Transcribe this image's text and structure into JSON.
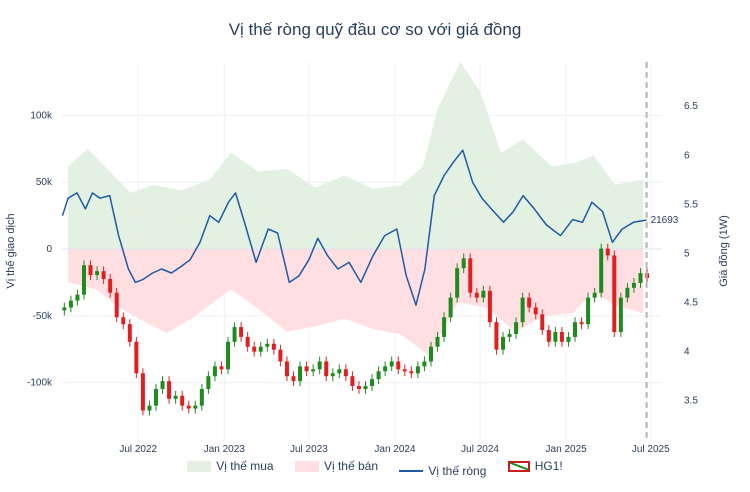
{
  "chart_data": {
    "type": "line",
    "title": "Vị thế ròng quỹ đầu cơ so với giá đồng",
    "y_left": {
      "label": "Vị thế giao dịch",
      "range": [
        -143000,
        140000
      ],
      "ticks": [
        100000,
        50000,
        0,
        -50000,
        -100000
      ],
      "tick_labels": [
        "100k",
        "50k",
        "0",
        "-50k",
        "-100k"
      ]
    },
    "y_right": {
      "label": "Giá đồng (1W)",
      "range": [
        3.1,
        6.95
      ],
      "ticks": [
        6.5,
        6,
        5.5,
        5,
        4.5,
        4,
        3.5
      ],
      "tick_labels": [
        "6.5",
        "6",
        "5.5",
        "5",
        "4.5",
        "4",
        "3.5"
      ]
    },
    "x_axis": {
      "range": [
        "2022-01-19",
        "2025-07-25"
      ],
      "ticks": [
        "2022-07-01",
        "2023-01-01",
        "2023-07-01",
        "2024-01-01",
        "2024-07-01",
        "2025-01-01",
        "2025-07-01"
      ],
      "tick_labels": [
        "Jul 2022",
        "Jan 2023",
        "Jul 2023",
        "Jan 2024",
        "Jul 2024",
        "Jan 2025",
        "Jul 2025"
      ]
    },
    "legend": {
      "position": "bottom",
      "items": [
        "Vị thế mua",
        "Vị thế bán",
        "Vị thế ròng",
        "HG1!"
      ]
    },
    "last_value_label": "21693",
    "marker_date": "2025-06-22",
    "grid": true,
    "colors": {
      "buy_fill": "#e3f1e3",
      "sell_fill": "#ffdfe2",
      "net_line": "#1f5aa6",
      "candle_up": "#1f8a1f",
      "candle_down": "#e02020",
      "marker": "#b4b4b4"
    },
    "series": [
      {
        "name": "Vị thế mua",
        "type": "area",
        "points": [
          [
            "2022-02-01",
            62000
          ],
          [
            "2022-03-15",
            75000
          ],
          [
            "2022-05-01",
            58000
          ],
          [
            "2022-06-15",
            42000
          ],
          [
            "2022-08-01",
            48000
          ],
          [
            "2022-10-01",
            44000
          ],
          [
            "2022-12-01",
            52000
          ],
          [
            "2023-01-15",
            72000
          ],
          [
            "2023-03-15",
            58000
          ],
          [
            "2023-05-15",
            60000
          ],
          [
            "2023-07-15",
            46000
          ],
          [
            "2023-09-15",
            55000
          ],
          [
            "2023-11-15",
            45000
          ],
          [
            "2024-01-15",
            48000
          ],
          [
            "2024-03-01",
            62000
          ],
          [
            "2024-04-01",
            105000
          ],
          [
            "2024-05-20",
            140000
          ],
          [
            "2024-07-01",
            118000
          ],
          [
            "2024-08-15",
            72000
          ],
          [
            "2024-10-01",
            82000
          ],
          [
            "2024-12-01",
            62000
          ],
          [
            "2025-01-15",
            64000
          ],
          [
            "2025-03-01",
            70000
          ],
          [
            "2025-04-15",
            48000
          ],
          [
            "2025-06-15",
            52000
          ]
        ]
      },
      {
        "name": "Vị thế bán",
        "type": "area",
        "points": [
          [
            "2022-02-01",
            -25000
          ],
          [
            "2022-04-01",
            -30000
          ],
          [
            "2022-05-15",
            -42000
          ],
          [
            "2022-07-01",
            -52000
          ],
          [
            "2022-09-01",
            -63000
          ],
          [
            "2022-11-01",
            -50000
          ],
          [
            "2023-01-15",
            -30000
          ],
          [
            "2023-03-15",
            -45000
          ],
          [
            "2023-05-15",
            -62000
          ],
          [
            "2023-07-15",
            -58000
          ],
          [
            "2023-09-15",
            -52000
          ],
          [
            "2023-11-15",
            -60000
          ],
          [
            "2024-01-15",
            -64000
          ],
          [
            "2024-03-15",
            -80000
          ],
          [
            "2024-05-15",
            -40000
          ],
          [
            "2024-07-15",
            -44000
          ],
          [
            "2024-09-15",
            -62000
          ],
          [
            "2024-11-15",
            -50000
          ],
          [
            "2025-01-15",
            -48000
          ],
          [
            "2025-03-01",
            -32000
          ],
          [
            "2025-04-15",
            -42000
          ],
          [
            "2025-06-15",
            -48000
          ]
        ]
      },
      {
        "name": "Vị thế ròng",
        "type": "line",
        "points": [
          [
            "2022-01-20",
            25000
          ],
          [
            "2022-02-01",
            38000
          ],
          [
            "2022-02-20",
            42000
          ],
          [
            "2022-03-10",
            30000
          ],
          [
            "2022-03-25",
            42000
          ],
          [
            "2022-04-10",
            38000
          ],
          [
            "2022-05-01",
            40000
          ],
          [
            "2022-05-20",
            10000
          ],
          [
            "2022-06-10",
            -15000
          ],
          [
            "2022-06-25",
            -25000
          ],
          [
            "2022-07-10",
            -23000
          ],
          [
            "2022-08-01",
            -18000
          ],
          [
            "2022-08-20",
            -15000
          ],
          [
            "2022-09-10",
            -18000
          ],
          [
            "2022-10-01",
            -13000
          ],
          [
            "2022-10-20",
            -8000
          ],
          [
            "2022-11-10",
            5000
          ],
          [
            "2022-12-01",
            25000
          ],
          [
            "2022-12-20",
            20000
          ],
          [
            "2023-01-10",
            35000
          ],
          [
            "2023-01-25",
            42000
          ],
          [
            "2023-02-15",
            18000
          ],
          [
            "2023-03-10",
            -10000
          ],
          [
            "2023-04-05",
            15000
          ],
          [
            "2023-04-25",
            12000
          ],
          [
            "2023-05-20",
            -25000
          ],
          [
            "2023-06-10",
            -20000
          ],
          [
            "2023-07-01",
            -8000
          ],
          [
            "2023-07-20",
            8000
          ],
          [
            "2023-08-10",
            -5000
          ],
          [
            "2023-09-01",
            -15000
          ],
          [
            "2023-09-25",
            -10000
          ],
          [
            "2023-10-20",
            -25000
          ],
          [
            "2023-11-15",
            -5000
          ],
          [
            "2023-12-10",
            10000
          ],
          [
            "2024-01-05",
            15000
          ],
          [
            "2024-01-25",
            -20000
          ],
          [
            "2024-02-15",
            -42000
          ],
          [
            "2024-03-05",
            -15000
          ],
          [
            "2024-03-25",
            40000
          ],
          [
            "2024-04-15",
            55000
          ],
          [
            "2024-05-05",
            65000
          ],
          [
            "2024-05-25",
            74000
          ],
          [
            "2024-06-15",
            50000
          ],
          [
            "2024-07-05",
            38000
          ],
          [
            "2024-07-25",
            30000
          ],
          [
            "2024-08-20",
            20000
          ],
          [
            "2024-09-10",
            28000
          ],
          [
            "2024-10-01",
            40000
          ],
          [
            "2024-10-25",
            30000
          ],
          [
            "2024-11-20",
            18000
          ],
          [
            "2024-12-20",
            10000
          ],
          [
            "2025-01-15",
            22000
          ],
          [
            "2025-02-05",
            20000
          ],
          [
            "2025-02-25",
            35000
          ],
          [
            "2025-03-20",
            28000
          ],
          [
            "2025-04-10",
            5000
          ],
          [
            "2025-05-01",
            15000
          ],
          [
            "2025-05-25",
            20000
          ],
          [
            "2025-06-22",
            21693
          ]
        ]
      },
      {
        "name": "HG1!",
        "type": "candlestick",
        "points": [
          [
            "2022-01-24",
            4.45
          ],
          [
            "2022-02-07",
            4.52
          ],
          [
            "2022-02-21",
            4.58
          ],
          [
            "2022-03-07",
            4.88
          ],
          [
            "2022-03-21",
            4.78
          ],
          [
            "2022-04-04",
            4.82
          ],
          [
            "2022-04-18",
            4.74
          ],
          [
            "2022-05-02",
            4.6
          ],
          [
            "2022-05-16",
            4.35
          ],
          [
            "2022-05-30",
            4.28
          ],
          [
            "2022-06-13",
            4.1
          ],
          [
            "2022-06-27",
            3.78
          ],
          [
            "2022-07-11",
            3.4
          ],
          [
            "2022-07-25",
            3.45
          ],
          [
            "2022-08-08",
            3.62
          ],
          [
            "2022-08-22",
            3.7
          ],
          [
            "2022-09-05",
            3.52
          ],
          [
            "2022-09-19",
            3.55
          ],
          [
            "2022-10-03",
            3.45
          ],
          [
            "2022-10-17",
            3.42
          ],
          [
            "2022-10-31",
            3.45
          ],
          [
            "2022-11-14",
            3.62
          ],
          [
            "2022-11-28",
            3.75
          ],
          [
            "2022-12-12",
            3.85
          ],
          [
            "2022-12-26",
            3.82
          ],
          [
            "2023-01-09",
            4.1
          ],
          [
            "2023-01-23",
            4.25
          ],
          [
            "2023-02-06",
            4.15
          ],
          [
            "2023-02-20",
            4.05
          ],
          [
            "2023-03-06",
            4.0
          ],
          [
            "2023-03-20",
            4.05
          ],
          [
            "2023-04-03",
            4.08
          ],
          [
            "2023-04-17",
            4.02
          ],
          [
            "2023-05-01",
            3.9
          ],
          [
            "2023-05-15",
            3.75
          ],
          [
            "2023-05-29",
            3.7
          ],
          [
            "2023-06-12",
            3.85
          ],
          [
            "2023-06-26",
            3.8
          ],
          [
            "2023-07-10",
            3.82
          ],
          [
            "2023-07-24",
            3.9
          ],
          [
            "2023-08-07",
            3.75
          ],
          [
            "2023-08-21",
            3.78
          ],
          [
            "2023-09-04",
            3.82
          ],
          [
            "2023-09-18",
            3.75
          ],
          [
            "2023-10-02",
            3.65
          ],
          [
            "2023-10-16",
            3.62
          ],
          [
            "2023-10-30",
            3.65
          ],
          [
            "2023-11-13",
            3.72
          ],
          [
            "2023-11-27",
            3.8
          ],
          [
            "2023-12-11",
            3.85
          ],
          [
            "2023-12-25",
            3.9
          ],
          [
            "2024-01-08",
            3.82
          ],
          [
            "2024-01-22",
            3.8
          ],
          [
            "2024-02-05",
            3.78
          ],
          [
            "2024-02-19",
            3.85
          ],
          [
            "2024-03-04",
            3.9
          ],
          [
            "2024-03-18",
            4.05
          ],
          [
            "2024-04-01",
            4.15
          ],
          [
            "2024-04-15",
            4.35
          ],
          [
            "2024-04-29",
            4.55
          ],
          [
            "2024-05-13",
            4.85
          ],
          [
            "2024-05-27",
            4.95
          ],
          [
            "2024-06-10",
            4.6
          ],
          [
            "2024-06-24",
            4.55
          ],
          [
            "2024-07-08",
            4.62
          ],
          [
            "2024-07-22",
            4.3
          ],
          [
            "2024-08-05",
            4.02
          ],
          [
            "2024-08-19",
            4.15
          ],
          [
            "2024-09-02",
            4.18
          ],
          [
            "2024-09-16",
            4.3
          ],
          [
            "2024-09-30",
            4.55
          ],
          [
            "2024-10-14",
            4.45
          ],
          [
            "2024-10-28",
            4.38
          ],
          [
            "2024-11-11",
            4.22
          ],
          [
            "2024-11-25",
            4.1
          ],
          [
            "2024-12-09",
            4.2
          ],
          [
            "2024-12-23",
            4.1
          ],
          [
            "2025-01-06",
            4.15
          ],
          [
            "2025-01-20",
            4.3
          ],
          [
            "2025-02-03",
            4.28
          ],
          [
            "2025-02-17",
            4.55
          ],
          [
            "2025-03-03",
            4.6
          ],
          [
            "2025-03-17",
            5.05
          ],
          [
            "2025-03-31",
            4.98
          ],
          [
            "2025-04-14",
            4.2
          ],
          [
            "2025-04-28",
            4.55
          ],
          [
            "2025-05-12",
            4.65
          ],
          [
            "2025-05-26",
            4.7
          ],
          [
            "2025-06-09",
            4.8
          ],
          [
            "2025-06-23",
            4.75
          ]
        ]
      }
    ]
  }
}
